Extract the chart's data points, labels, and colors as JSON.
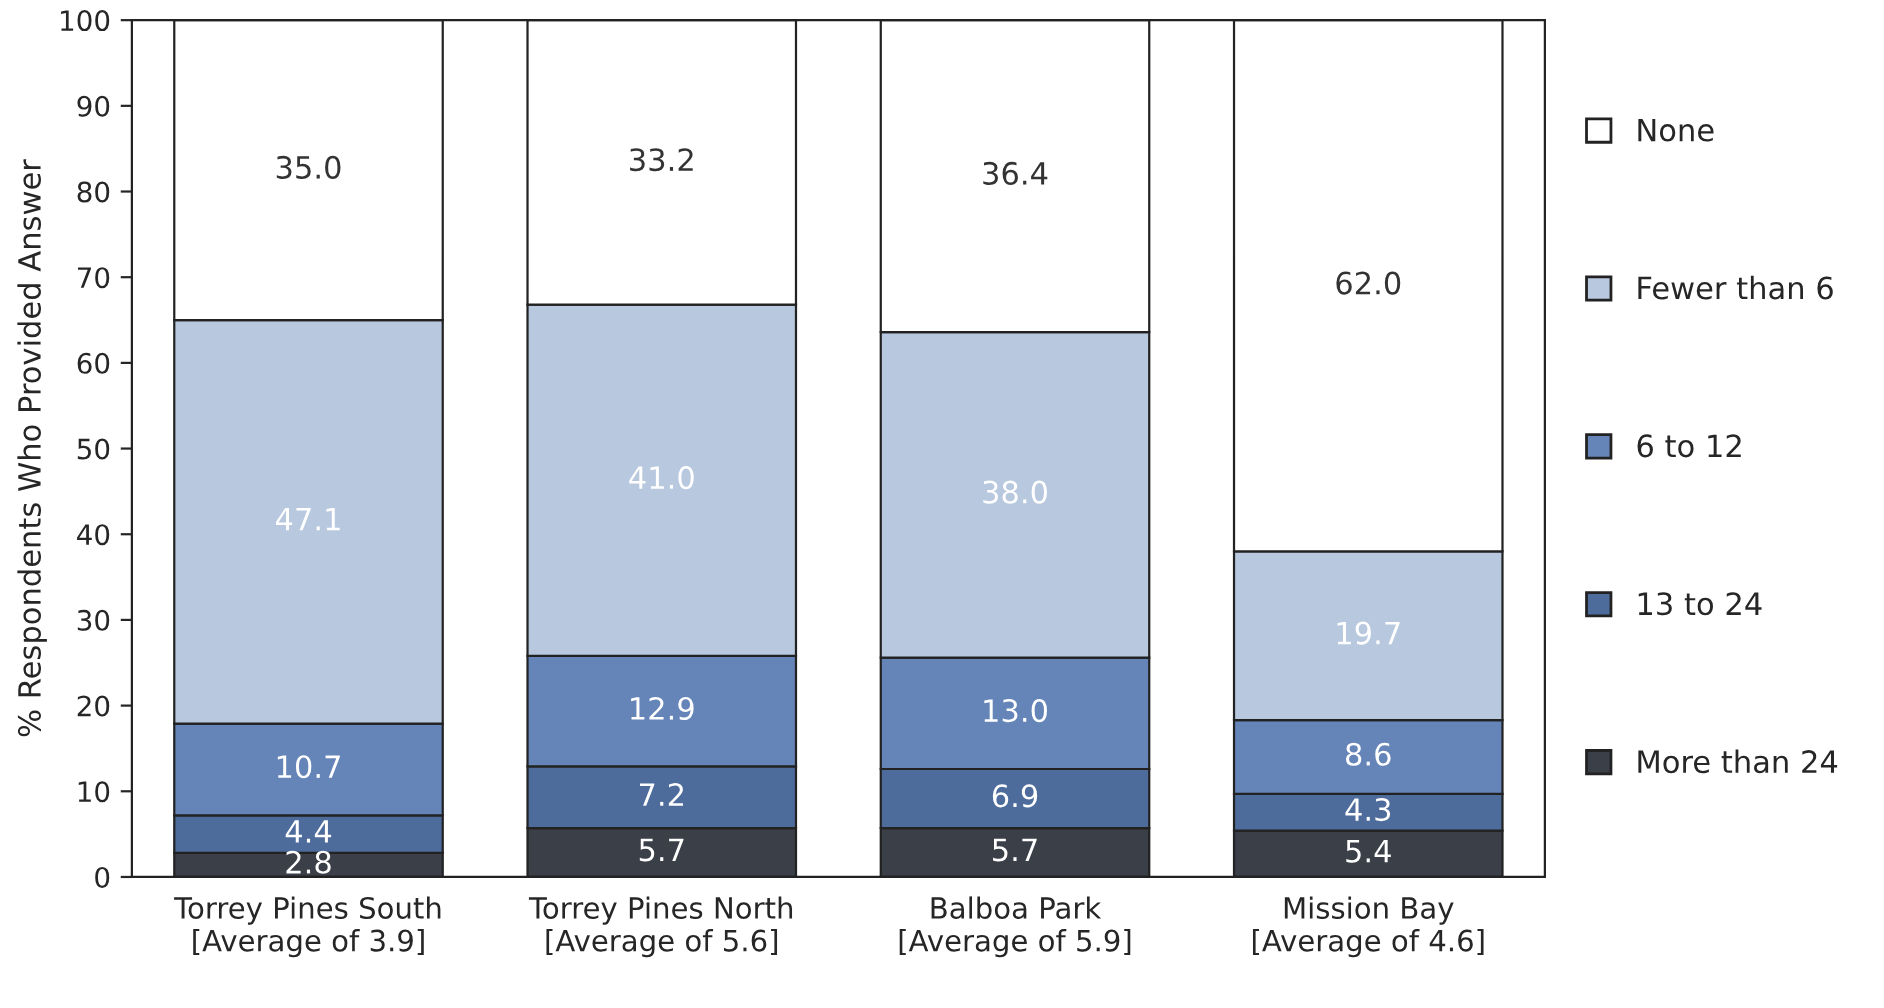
{
  "chart_data": {
    "type": "bar",
    "stacked": true,
    "ylabel": "% Respondents Who Provided Answer",
    "categories": [
      "Torrey Pines South\n[Average of 3.9]",
      "Torrey Pines North\n[Average of 5.6]",
      "Balboa Park\n[Average of 5.9]",
      "Mission Bay\n[Average of 4.6]"
    ],
    "series": [
      {
        "name": "More than 24",
        "color": "#3b3f48",
        "values": [
          2.8,
          5.7,
          5.7,
          5.4
        ],
        "value_labels": [
          "2.8",
          "5.7",
          "5.7",
          "5.4"
        ]
      },
      {
        "name": "13 to 24",
        "color": "#4d6c9c",
        "values": [
          4.4,
          7.2,
          6.9,
          4.3
        ],
        "value_labels": [
          "4.4",
          "7.2",
          "6.9",
          "4.3"
        ]
      },
      {
        "name": "6 to 12",
        "color": "#6585b9",
        "values": [
          10.7,
          12.9,
          13.0,
          8.6
        ],
        "value_labels": [
          "10.7",
          "12.9",
          "13.0",
          "8.6"
        ]
      },
      {
        "name": "Fewer than 6",
        "color": "#b8c8df",
        "values": [
          47.1,
          41.0,
          38.0,
          19.7
        ],
        "value_labels": [
          "47.1",
          "41.0",
          "38.0",
          "19.7"
        ]
      },
      {
        "name": "None",
        "color": "#ffffff",
        "values": [
          35.0,
          33.2,
          36.4,
          62.0
        ],
        "value_labels": [
          "35.0",
          "33.2",
          "36.4",
          "62.0"
        ]
      }
    ],
    "ylim": [
      0,
      100
    ],
    "yticks": [
      0,
      10,
      20,
      30,
      40,
      50,
      60,
      70,
      80,
      90,
      100
    ],
    "grid": false,
    "legend": "right"
  }
}
